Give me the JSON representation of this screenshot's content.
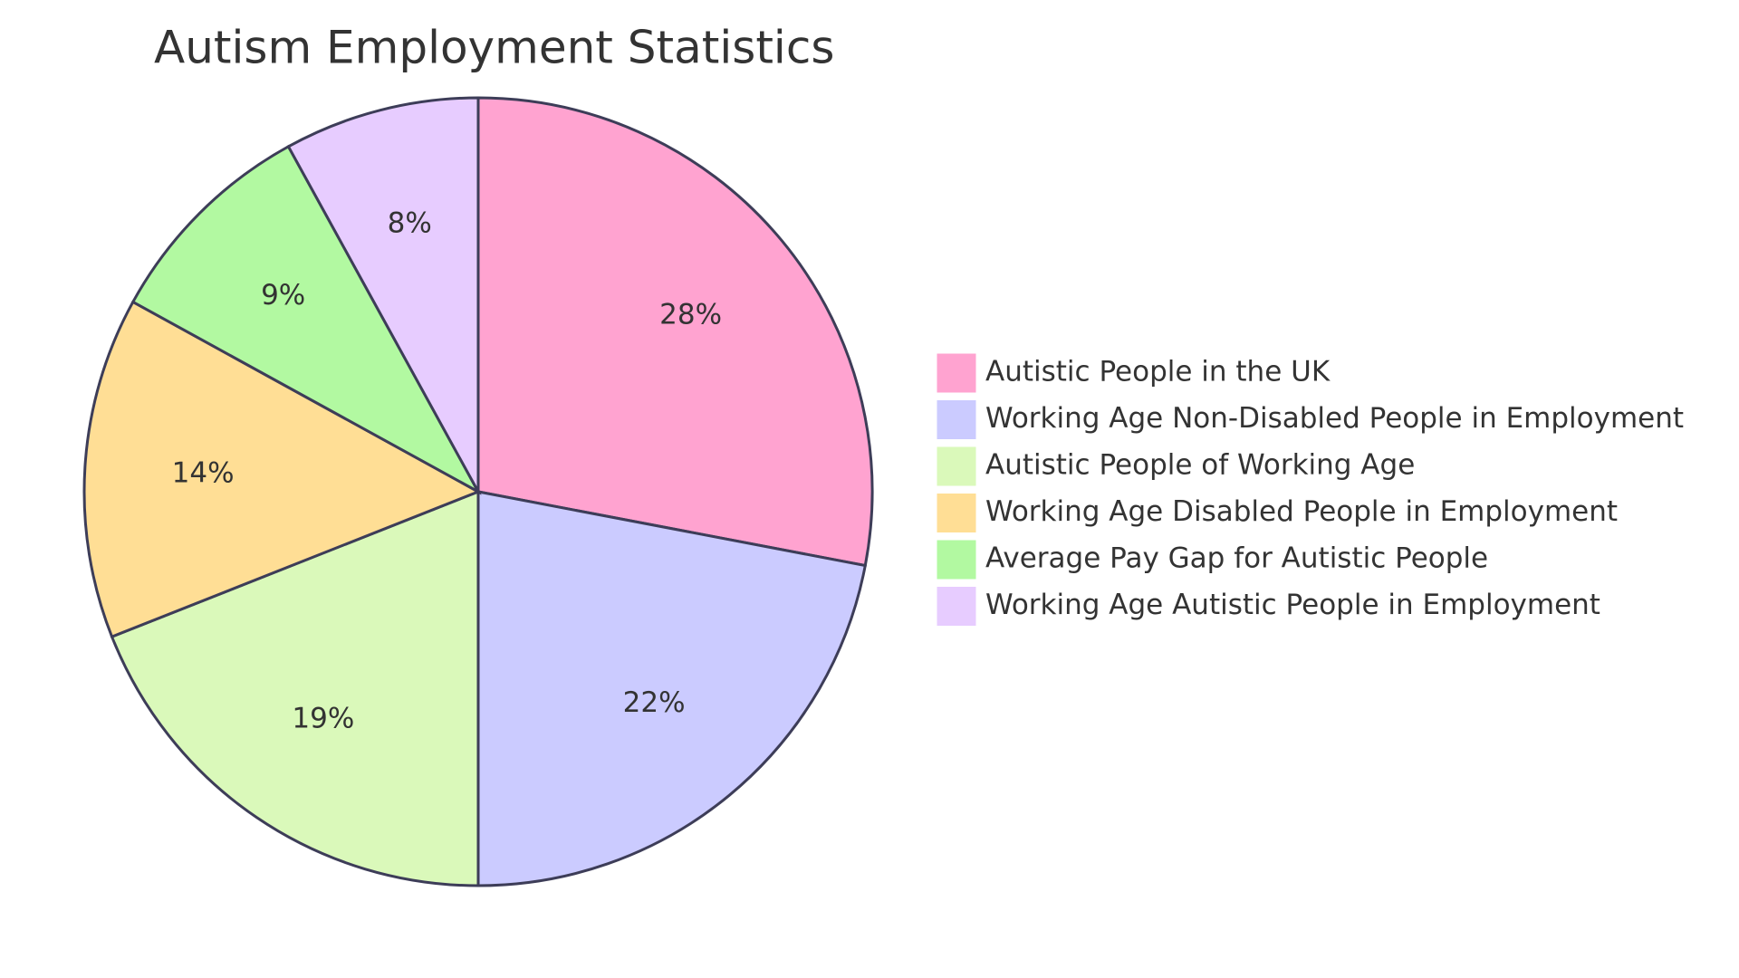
{
  "chart_data": {
    "type": "pie",
    "title": "Autism Employment Statistics",
    "slices": [
      {
        "label": "Autistic People in the UK",
        "value": 28,
        "display": "28%",
        "color": "#FFA3D0"
      },
      {
        "label": "Working Age Non-Disabled People in Employment",
        "value": 22,
        "display": "22%",
        "color": "#CBCBFF"
      },
      {
        "label": "Autistic People of Working Age",
        "value": 19,
        "display": "19%",
        "color": "#DAF9BA"
      },
      {
        "label": "Working Age Disabled People in Employment",
        "value": 14,
        "display": "14%",
        "color": "#FFDE95"
      },
      {
        "label": "Average Pay Gap for Autistic People",
        "value": 9,
        "display": "9%",
        "color": "#B2F9A1"
      },
      {
        "label": "Working Age Autistic People in Employment",
        "value": 8,
        "display": "8%",
        "color": "#E7CCFF"
      }
    ],
    "legend_position": "right",
    "stroke_color": "#3D3D58"
  }
}
